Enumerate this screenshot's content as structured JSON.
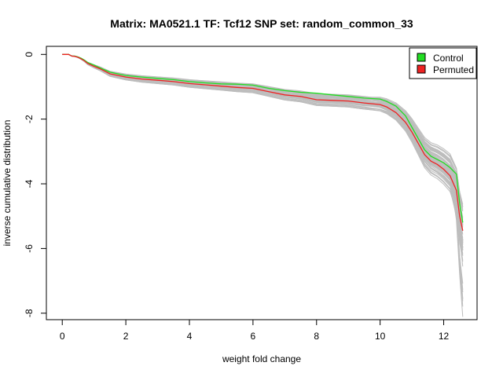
{
  "chart_data": {
    "type": "line",
    "title": "Matrix: MA0521.1 TF: Tcf12 SNP set: random_common_33",
    "xlabel": "weight fold change",
    "ylabel": "inverse cumulative distribution",
    "xlim": [
      -0.5,
      13.05
    ],
    "ylim": [
      -8.2,
      0.25
    ],
    "xticks": [
      0,
      2,
      4,
      6,
      8,
      10,
      12
    ],
    "yticks": [
      0,
      -2,
      -4,
      -6,
      -8
    ],
    "grid": false,
    "legend_position": "top-right",
    "legend": [
      {
        "label": "Control",
        "color": "#22dd22"
      },
      {
        "label": "Permuted",
        "color": "#ee2222"
      }
    ],
    "colors": {
      "control": "#22dd22",
      "permuted": "#ee2222",
      "background_runs": "#bdbdbd"
    },
    "series": [
      {
        "name": "Control",
        "color": "#22dd22",
        "x": [
          0,
          0.2,
          0.3,
          0.4,
          0.5,
          0.6,
          0.7,
          0.8,
          1.0,
          1.2,
          1.5,
          2.0,
          2.5,
          3.0,
          3.5,
          4.0,
          4.5,
          5.0,
          5.5,
          6.0,
          6.5,
          7.0,
          7.5,
          8.0,
          8.5,
          9.0,
          9.5,
          10.0,
          10.2,
          10.5,
          10.8,
          11.0,
          11.2,
          11.4,
          11.6,
          11.8,
          12.0,
          12.2,
          12.4,
          12.5,
          12.6
        ],
        "y": [
          0,
          0,
          -0.05,
          -0.05,
          -0.08,
          -0.12,
          -0.18,
          -0.25,
          -0.33,
          -0.42,
          -0.55,
          -0.65,
          -0.7,
          -0.74,
          -0.78,
          -0.84,
          -0.88,
          -0.91,
          -0.92,
          -0.95,
          -1.05,
          -1.12,
          -1.17,
          -1.2,
          -1.25,
          -1.3,
          -1.35,
          -1.38,
          -1.45,
          -1.6,
          -1.9,
          -2.25,
          -2.6,
          -2.95,
          -3.15,
          -3.25,
          -3.35,
          -3.5,
          -3.7,
          -4.6,
          -5.2
        ]
      },
      {
        "name": "Permuted",
        "color": "#ee2222",
        "x": [
          0,
          0.2,
          0.3,
          0.4,
          0.5,
          0.6,
          0.7,
          0.8,
          1.0,
          1.2,
          1.5,
          2.0,
          2.5,
          3.0,
          3.5,
          4.0,
          4.5,
          5.0,
          5.5,
          6.0,
          6.5,
          7.0,
          7.5,
          8.0,
          8.5,
          9.0,
          9.5,
          10.0,
          10.2,
          10.5,
          10.8,
          11.0,
          11.2,
          11.4,
          11.6,
          11.8,
          12.0,
          12.2,
          12.4,
          12.5,
          12.6
        ],
        "y": [
          0,
          0,
          -0.05,
          -0.06,
          -0.09,
          -0.14,
          -0.2,
          -0.28,
          -0.37,
          -0.45,
          -0.6,
          -0.7,
          -0.76,
          -0.8,
          -0.84,
          -0.9,
          -0.94,
          -0.98,
          -1.02,
          -1.05,
          -1.15,
          -1.25,
          -1.3,
          -1.4,
          -1.42,
          -1.44,
          -1.5,
          -1.55,
          -1.62,
          -1.8,
          -2.1,
          -2.4,
          -2.75,
          -3.1,
          -3.3,
          -3.4,
          -3.55,
          -3.75,
          -4.2,
          -5.0,
          -5.45
        ]
      }
    ]
  }
}
